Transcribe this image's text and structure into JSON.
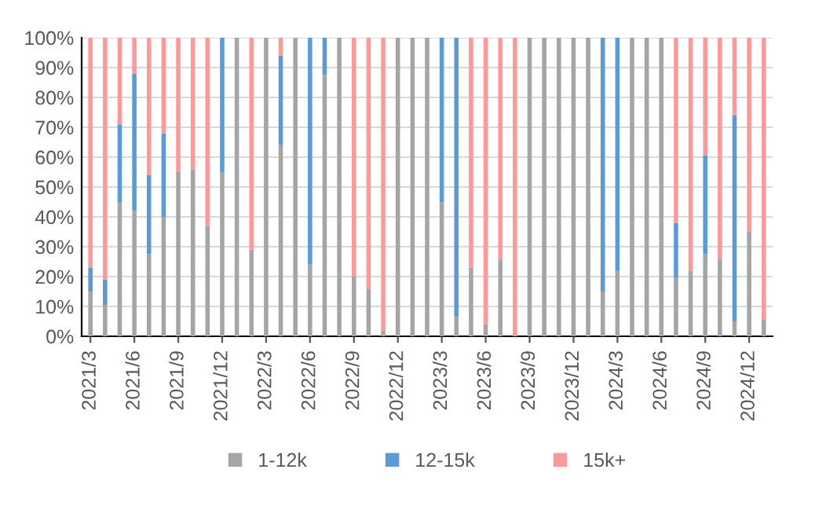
{
  "chart_data": {
    "type": "bar",
    "stacked": true,
    "categories": [
      "2021/3",
      null,
      null,
      "2021/6",
      null,
      null,
      "2021/9",
      null,
      null,
      "2021/12",
      null,
      null,
      "2022/3",
      null,
      null,
      "2022/6",
      null,
      null,
      "2022/9",
      null,
      null,
      "2022/12",
      null,
      null,
      "2023/3",
      null,
      null,
      "2023/6",
      null,
      null,
      "2023/9",
      null,
      null,
      "2023/12",
      null,
      null,
      "2024/3",
      null,
      null,
      "2024/6",
      null,
      null,
      "2024/9",
      null,
      null,
      "2024/12",
      null
    ],
    "series": [
      {
        "name": "1-12k",
        "color": "#a5a5a5",
        "values": [
          15,
          10.5,
          45,
          42,
          27.5,
          40,
          55,
          56,
          37,
          55,
          100,
          29,
          100,
          64,
          100,
          24,
          87.5,
          100,
          20,
          16,
          2,
          100,
          100,
          100,
          45,
          6.5,
          23,
          4,
          25.5,
          0,
          100,
          100,
          100,
          100,
          100,
          15,
          22,
          100,
          100,
          100,
          19.5,
          22,
          27.5,
          26,
          5,
          35,
          5.5
        ]
      },
      {
        "name": "12-15k",
        "color": "#5b9bd5",
        "values": [
          8,
          8.5,
          26,
          46,
          26.5,
          28,
          0,
          0,
          0,
          45,
          0,
          0,
          0,
          30,
          0,
          76,
          12.5,
          0,
          0,
          0,
          0,
          0,
          0,
          0,
          55,
          93.5,
          0,
          0,
          0,
          0,
          0,
          0,
          0,
          0,
          0,
          85,
          78,
          0,
          0,
          0,
          18.5,
          0,
          33,
          0,
          69,
          0,
          0
        ]
      },
      {
        "name": "15k+",
        "color": "#ff9999",
        "values": [
          77,
          81,
          29,
          12,
          46,
          32,
          45,
          44,
          63,
          0,
          0,
          71,
          0,
          6,
          0,
          0,
          0,
          0,
          80,
          84,
          98,
          0,
          0,
          0,
          0,
          0,
          77,
          96,
          74.5,
          100,
          0,
          0,
          0,
          0,
          0,
          0,
          0,
          0,
          0,
          0,
          62,
          78,
          39.5,
          74,
          26,
          65,
          94.5
        ]
      }
    ],
    "ylim": [
      0,
      100
    ],
    "yticks": [
      {
        "value": 0,
        "label": "0%"
      },
      {
        "value": 10,
        "label": "10%"
      },
      {
        "value": 20,
        "label": "20%"
      },
      {
        "value": 30,
        "label": "30%"
      },
      {
        "value": 40,
        "label": "40%"
      },
      {
        "value": 50,
        "label": "50%"
      },
      {
        "value": 60,
        "label": "60%"
      },
      {
        "value": 70,
        "label": "70%"
      },
      {
        "value": 80,
        "label": "80%"
      },
      {
        "value": 90,
        "label": "90%"
      },
      {
        "value": 100,
        "label": "100%"
      }
    ],
    "grid": "y",
    "legend": "bottom"
  }
}
